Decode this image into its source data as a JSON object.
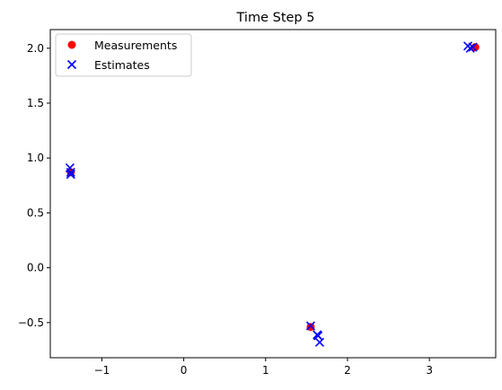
{
  "chart_data": {
    "type": "scatter",
    "title": "Time Step 5",
    "xlabel": "",
    "ylabel": "",
    "xlim": [
      -1.63,
      3.81
    ],
    "ylim": [
      -0.82,
      2.17
    ],
    "xticks": [
      -1,
      0,
      1,
      2,
      3
    ],
    "yticks": [
      -0.5,
      0.0,
      0.5,
      1.0,
      1.5,
      2.0
    ],
    "xtick_labels": [
      "−1",
      "0",
      "1",
      "2",
      "3"
    ],
    "ytick_labels": [
      "−0.5",
      "0.0",
      "0.5",
      "1.0",
      "1.5",
      "2.0"
    ],
    "grid": false,
    "legend_position": "top-left",
    "series": [
      {
        "name": "Measurements",
        "marker": "circle",
        "color": "#ff0000",
        "points": [
          {
            "x": -1.38,
            "y": 0.87
          },
          {
            "x": 1.55,
            "y": -0.54
          },
          {
            "x": 3.56,
            "y": 2.01
          }
        ]
      },
      {
        "name": "Estimates",
        "marker": "x",
        "color": "#0000ff",
        "points": [
          {
            "x": -1.39,
            "y": 0.91
          },
          {
            "x": -1.38,
            "y": 0.87
          },
          {
            "x": -1.38,
            "y": 0.85
          },
          {
            "x": 1.55,
            "y": -0.53
          },
          {
            "x": 1.63,
            "y": -0.61
          },
          {
            "x": 1.64,
            "y": -0.62
          },
          {
            "x": 1.66,
            "y": -0.68
          },
          {
            "x": 3.47,
            "y": 2.02
          },
          {
            "x": 3.5,
            "y": 2.0
          },
          {
            "x": 3.53,
            "y": 2.01
          }
        ]
      }
    ]
  }
}
